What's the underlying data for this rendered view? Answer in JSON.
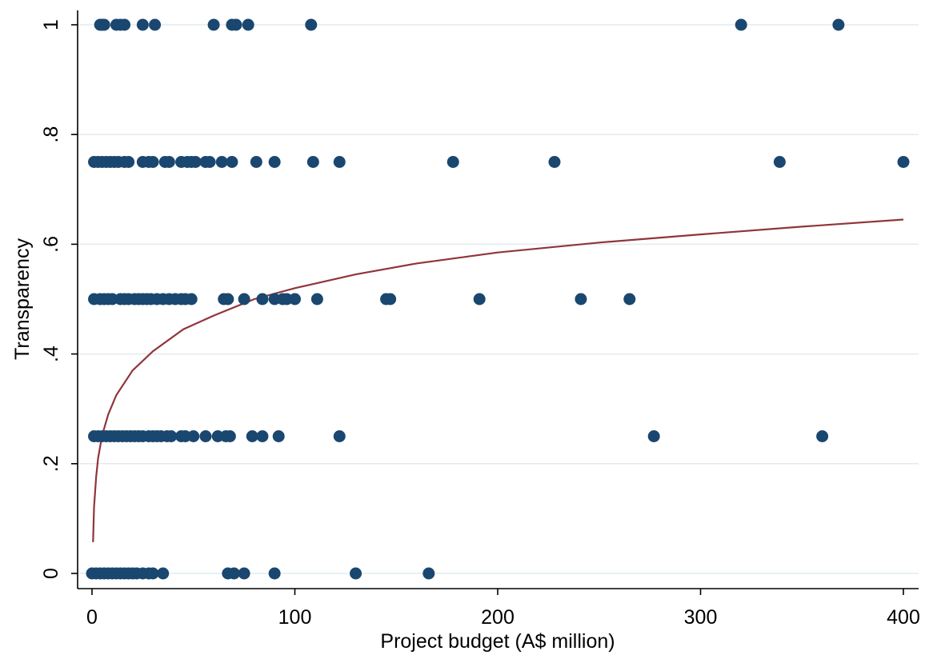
{
  "chart_data": {
    "type": "scatter",
    "title": "",
    "xlabel": "Project budget (A$ million)",
    "ylabel": "Transparency",
    "xlim": [
      -3,
      403
    ],
    "ylim": [
      -0.03,
      1.03
    ],
    "x_ticks": [
      {
        "value": 0,
        "label": "0"
      },
      {
        "value": 100,
        "label": "100"
      },
      {
        "value": 200,
        "label": "200"
      },
      {
        "value": 300,
        "label": "300"
      },
      {
        "value": 400,
        "label": "400"
      }
    ],
    "y_ticks": [
      {
        "value": 0,
        "label": "0"
      },
      {
        "value": 0.2,
        "label": ".2"
      },
      {
        "value": 0.4,
        "label": ".4"
      },
      {
        "value": 0.6,
        "label": ".6"
      },
      {
        "value": 0.8,
        "label": ".8"
      },
      {
        "value": 1,
        "label": "1"
      }
    ],
    "grid": "horizontal",
    "legend": "none",
    "colors": {
      "points": "#1a476f",
      "fit": "#90353b",
      "grid": "#e3ebef",
      "axis": "#000000"
    },
    "series": [
      {
        "kind": "scatter",
        "points": [
          [
            4,
            1
          ],
          [
            5,
            1
          ],
          [
            6,
            1
          ],
          [
            12,
            1
          ],
          [
            14,
            1
          ],
          [
            16,
            1
          ],
          [
            25,
            1
          ],
          [
            31,
            1
          ],
          [
            60,
            1
          ],
          [
            69,
            1
          ],
          [
            71,
            1
          ],
          [
            77,
            1
          ],
          [
            108,
            1
          ],
          [
            320,
            1
          ],
          [
            368,
            1
          ],
          [
            1,
            0.75
          ],
          [
            3,
            0.75
          ],
          [
            5,
            0.75
          ],
          [
            7,
            0.75
          ],
          [
            9,
            0.75
          ],
          [
            11,
            0.75
          ],
          [
            13,
            0.75
          ],
          [
            16,
            0.75
          ],
          [
            18,
            0.75
          ],
          [
            25,
            0.75
          ],
          [
            28,
            0.75
          ],
          [
            30,
            0.75
          ],
          [
            36,
            0.75
          ],
          [
            38,
            0.75
          ],
          [
            44,
            0.75
          ],
          [
            47,
            0.75
          ],
          [
            49,
            0.75
          ],
          [
            51,
            0.75
          ],
          [
            56,
            0.75
          ],
          [
            58,
            0.75
          ],
          [
            64,
            0.75
          ],
          [
            69,
            0.75
          ],
          [
            81,
            0.75
          ],
          [
            90,
            0.75
          ],
          [
            109,
            0.75
          ],
          [
            122,
            0.75
          ],
          [
            178,
            0.75
          ],
          [
            228,
            0.75
          ],
          [
            339,
            0.75
          ],
          [
            400,
            0.75
          ],
          [
            1,
            0.5
          ],
          [
            4,
            0.5
          ],
          [
            6,
            0.5
          ],
          [
            8,
            0.5
          ],
          [
            10,
            0.5
          ],
          [
            14,
            0.5
          ],
          [
            16,
            0.5
          ],
          [
            18,
            0.5
          ],
          [
            21,
            0.5
          ],
          [
            23,
            0.5
          ],
          [
            25,
            0.5
          ],
          [
            27,
            0.5
          ],
          [
            29,
            0.5
          ],
          [
            32,
            0.5
          ],
          [
            35,
            0.5
          ],
          [
            38,
            0.5
          ],
          [
            41,
            0.5
          ],
          [
            44,
            0.5
          ],
          [
            46,
            0.5
          ],
          [
            49,
            0.5
          ],
          [
            65,
            0.5
          ],
          [
            67,
            0.5
          ],
          [
            75,
            0.5
          ],
          [
            84,
            0.5
          ],
          [
            90,
            0.5
          ],
          [
            94,
            0.5
          ],
          [
            96,
            0.5
          ],
          [
            100,
            0.5
          ],
          [
            111,
            0.5
          ],
          [
            145,
            0.5
          ],
          [
            147,
            0.5
          ],
          [
            191,
            0.5
          ],
          [
            241,
            0.5
          ],
          [
            265,
            0.5
          ],
          [
            1,
            0.25
          ],
          [
            3,
            0.25
          ],
          [
            5,
            0.25
          ],
          [
            7,
            0.25
          ],
          [
            9,
            0.25
          ],
          [
            11,
            0.25
          ],
          [
            13,
            0.25
          ],
          [
            15,
            0.25
          ],
          [
            17,
            0.25
          ],
          [
            19,
            0.25
          ],
          [
            21,
            0.25
          ],
          [
            23,
            0.25
          ],
          [
            25,
            0.25
          ],
          [
            28,
            0.25
          ],
          [
            30,
            0.25
          ],
          [
            32,
            0.25
          ],
          [
            34,
            0.25
          ],
          [
            37,
            0.25
          ],
          [
            39,
            0.25
          ],
          [
            44,
            0.25
          ],
          [
            46,
            0.25
          ],
          [
            50,
            0.25
          ],
          [
            56,
            0.25
          ],
          [
            62,
            0.25
          ],
          [
            66,
            0.25
          ],
          [
            68,
            0.25
          ],
          [
            79,
            0.25
          ],
          [
            84,
            0.25
          ],
          [
            92,
            0.25
          ],
          [
            122,
            0.25
          ],
          [
            277,
            0.25
          ],
          [
            360,
            0.25
          ],
          [
            0,
            0
          ],
          [
            2,
            0
          ],
          [
            4,
            0
          ],
          [
            6,
            0
          ],
          [
            8,
            0
          ],
          [
            10,
            0
          ],
          [
            12,
            0
          ],
          [
            14,
            0
          ],
          [
            16,
            0
          ],
          [
            18,
            0
          ],
          [
            20,
            0
          ],
          [
            22,
            0
          ],
          [
            25,
            0
          ],
          [
            28,
            0
          ],
          [
            30,
            0
          ],
          [
            35,
            0
          ],
          [
            67,
            0
          ],
          [
            70,
            0
          ],
          [
            75,
            0
          ],
          [
            90,
            0
          ],
          [
            130,
            0
          ],
          [
            166,
            0
          ]
        ]
      },
      {
        "kind": "fitted-curve",
        "points": [
          [
            0.5,
            0.057
          ],
          [
            1,
            0.12
          ],
          [
            2,
            0.175
          ],
          [
            3,
            0.21
          ],
          [
            5,
            0.252
          ],
          [
            8,
            0.29
          ],
          [
            12,
            0.325
          ],
          [
            20,
            0.37
          ],
          [
            30,
            0.405
          ],
          [
            45,
            0.445
          ],
          [
            60,
            0.47
          ],
          [
            80,
            0.5
          ],
          [
            100,
            0.52
          ],
          [
            130,
            0.545
          ],
          [
            160,
            0.565
          ],
          [
            200,
            0.585
          ],
          [
            250,
            0.603
          ],
          [
            300,
            0.618
          ],
          [
            350,
            0.632
          ],
          [
            400,
            0.645
          ]
        ]
      }
    ]
  }
}
